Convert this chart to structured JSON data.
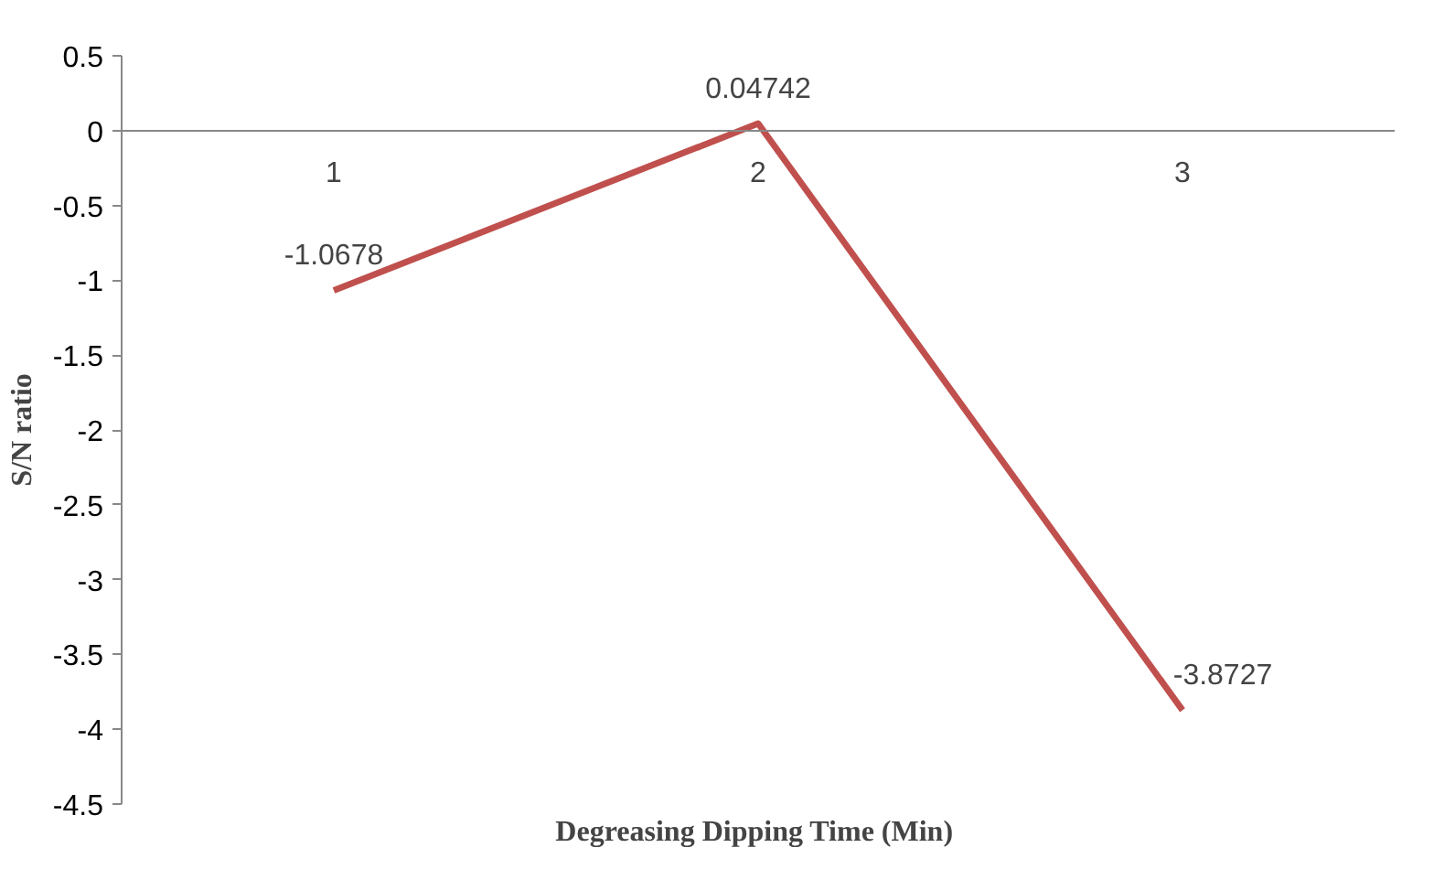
{
  "chart_data": {
    "type": "line",
    "xlabel": "Degreasing Dipping  Time (Min)",
    "ylabel": "S/N ratio",
    "categories": [
      "1",
      "2",
      "3"
    ],
    "series": [
      {
        "color": "#c0504d",
        "values": [
          -1.0678,
          0.04742,
          -3.8727
        ]
      }
    ],
    "ylim": [
      -4.5,
      0.5
    ],
    "yticks": [
      0.5,
      0,
      -0.5,
      -1,
      -1.5,
      -2,
      -2.5,
      -3,
      -3.5,
      -4,
      -4.5
    ],
    "data_labels": true,
    "grid": false,
    "marker": "none",
    "line_style": "solid"
  }
}
